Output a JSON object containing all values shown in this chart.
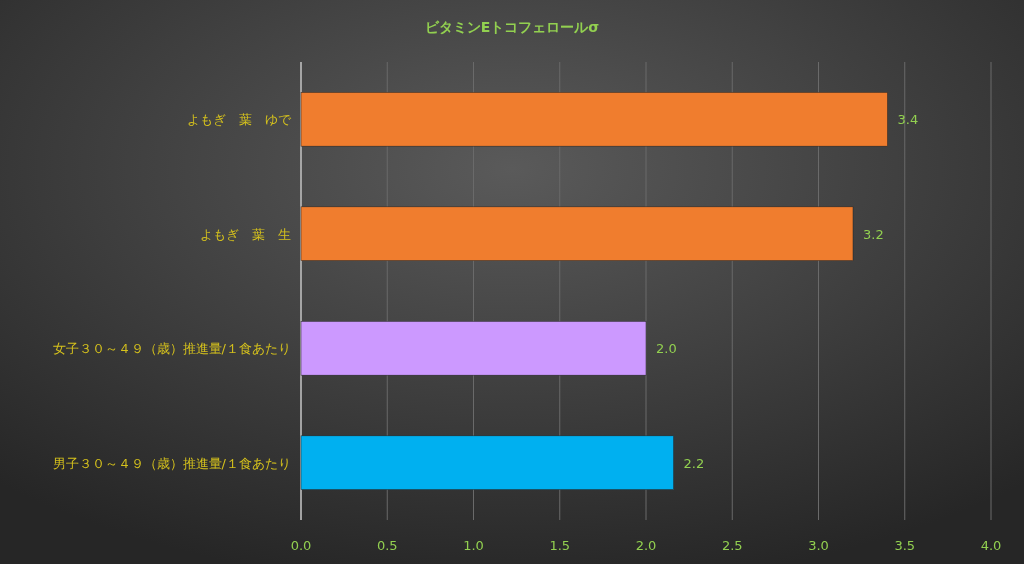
{
  "chart_data": {
    "type": "bar",
    "orientation": "horizontal",
    "title": "ビタミンEトコフェロールσ",
    "categories": [
      "よもぎ　葉　ゆで",
      "よもぎ　葉　生",
      "女子３０～４９（歳）推進量/１食あたり",
      "男子３０～４９（歳）推進量/１食あたり"
    ],
    "values": [
      3.4,
      3.2,
      2.0,
      2.16
    ],
    "value_labels": [
      "3.4",
      "3.2",
      "2.0",
      "2.2"
    ],
    "colors": [
      "#f07d2e",
      "#f07d2e",
      "#cc99ff",
      "#00b0f0"
    ],
    "xlim": [
      0,
      4
    ],
    "xticks": [
      {
        "value": 0,
        "label": "0.0"
      },
      {
        "value": 0.5,
        "label": "0.5"
      },
      {
        "value": 1,
        "label": "1.0"
      },
      {
        "value": 1.5,
        "label": "1.5"
      },
      {
        "value": 2,
        "label": "2.0"
      },
      {
        "value": 2.5,
        "label": "2.5"
      },
      {
        "value": 3,
        "label": "3.0"
      },
      {
        "value": 3.5,
        "label": "3.5"
      },
      {
        "value": 4,
        "label": "4.0"
      }
    ],
    "grid": "x"
  }
}
